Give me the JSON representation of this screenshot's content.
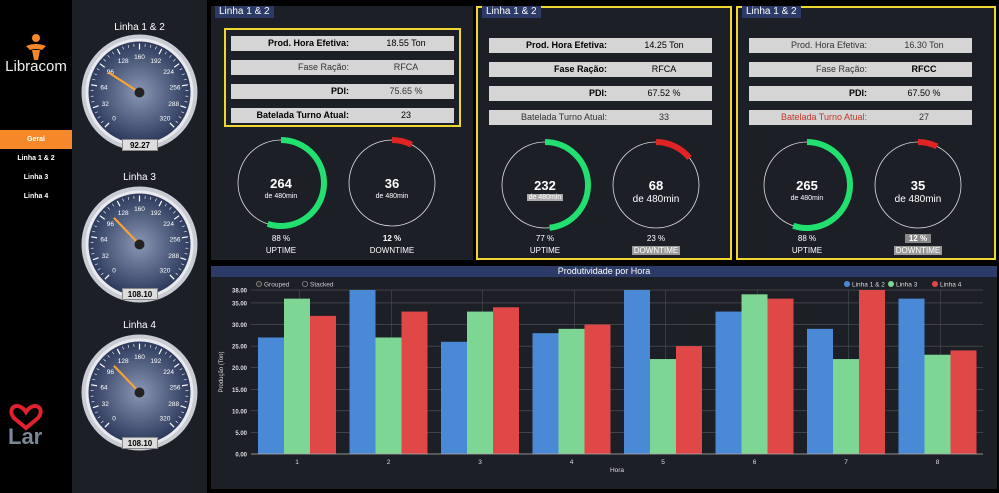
{
  "sidebar": {
    "brand": "Libracom",
    "brand2": "Lar",
    "nav": [
      {
        "label": "Geral",
        "active": true
      },
      {
        "label": "Linha 1 & 2",
        "active": false
      },
      {
        "label": "Linha 3",
        "active": false
      },
      {
        "label": "Linha 4",
        "active": false
      }
    ]
  },
  "gauges": [
    {
      "title": "Linha 1 & 2",
      "value": 92.27,
      "display": "92.27"
    },
    {
      "title": "Linha 3",
      "value": 108.1,
      "display": "108.10"
    },
    {
      "title": "Linha 4",
      "value": 108.1,
      "display": "108.10"
    }
  ],
  "gauge_ticks": [
    "0",
    "32",
    "64",
    "96",
    "128",
    "160",
    "192",
    "224",
    "256",
    "288",
    "320"
  ],
  "lines": [
    {
      "tag": "Linha 1 & 2",
      "rows": [
        {
          "label": "Prod. Hora Efetiva:",
          "value": "18.55 Ton"
        },
        {
          "label": "Fase Ração:",
          "value": "RFCA"
        },
        {
          "label": "PDI:",
          "value": "75.65 %"
        },
        {
          "label": "Batelada Turno Atual:",
          "value": "23"
        }
      ],
      "uptime": {
        "value": "264",
        "sub": "de 480min",
        "pct": "88 %",
        "caption": "UPTIME",
        "fraction": 0.55
      },
      "downtime": {
        "value": "36",
        "sub": "de 480min",
        "pct": "12 %",
        "caption": "DOWNTIME",
        "fraction": 0.075
      }
    },
    {
      "tag": "Linha 1 & 2",
      "rows": [
        {
          "label": "Prod. Hora Efetiva:",
          "value": "14.25 Ton"
        },
        {
          "label": "Fase Ração:",
          "value": "RFCA"
        },
        {
          "label": "PDI:",
          "value": "67.52 %"
        },
        {
          "label": "Batelada Turno Atual:",
          "value": "33"
        }
      ],
      "uptime": {
        "value": "232",
        "sub": "de 480min",
        "pct": "77 %",
        "caption": "UPTIME",
        "fraction": 0.483
      },
      "downtime": {
        "value": "68",
        "sub": "de 480min",
        "pct": "23 %",
        "caption": "DOWNTIME",
        "fraction": 0.142
      }
    },
    {
      "tag": "Linha 1 & 2",
      "rows": [
        {
          "label": "Prod. Hora Efetiva:",
          "value": "16.30 Ton"
        },
        {
          "label": "Fase Ração:",
          "value": "RFCC"
        },
        {
          "label": "PDI:",
          "value": "67.50 %"
        },
        {
          "label": "Batelada Turno Atual:",
          "value": "27"
        }
      ],
      "uptime": {
        "value": "265",
        "sub": "de 480min",
        "pct": "88 %",
        "caption": "UPTIME",
        "fraction": 0.552
      },
      "downtime": {
        "value": "35",
        "sub": "de 480min",
        "pct": "12 %",
        "caption": "DOWNTIME",
        "fraction": 0.073
      }
    }
  ],
  "colors": {
    "uptime": "#22e070",
    "downtime": "#e02424",
    "accent": "#f5892a",
    "highlight": "#f0d630"
  },
  "chart_data": {
    "type": "bar",
    "title": "Produtividade por Hora",
    "xlabel": "Hora",
    "ylabel": "Produção (Ton)",
    "mode_options": [
      "Grouped",
      "Stacked"
    ],
    "mode_selected": "Grouped",
    "legend_position": "top-right",
    "ylim": [
      0,
      38
    ],
    "yticks": [
      "0.00",
      "5.00",
      "10.00",
      "15.00",
      "20.00",
      "25.00",
      "30.00",
      "35.00",
      "38.00"
    ],
    "ytick_values": [
      0,
      5,
      10,
      15,
      20,
      25,
      30,
      35,
      38
    ],
    "categories": [
      "1",
      "2",
      "3",
      "4",
      "5",
      "6",
      "7",
      "8"
    ],
    "series": [
      {
        "name": "Linha 1 & 2",
        "color": "#4a89d6",
        "values": [
          27,
          38,
          26,
          28,
          38,
          33,
          29,
          36
        ]
      },
      {
        "name": "Linha 3",
        "color": "#7ed695",
        "values": [
          36,
          27,
          33,
          29,
          22,
          37,
          22,
          23
        ]
      },
      {
        "name": "Linha 4",
        "color": "#e04848",
        "values": [
          32,
          33,
          34,
          30,
          25,
          36,
          38,
          24
        ]
      }
    ]
  }
}
